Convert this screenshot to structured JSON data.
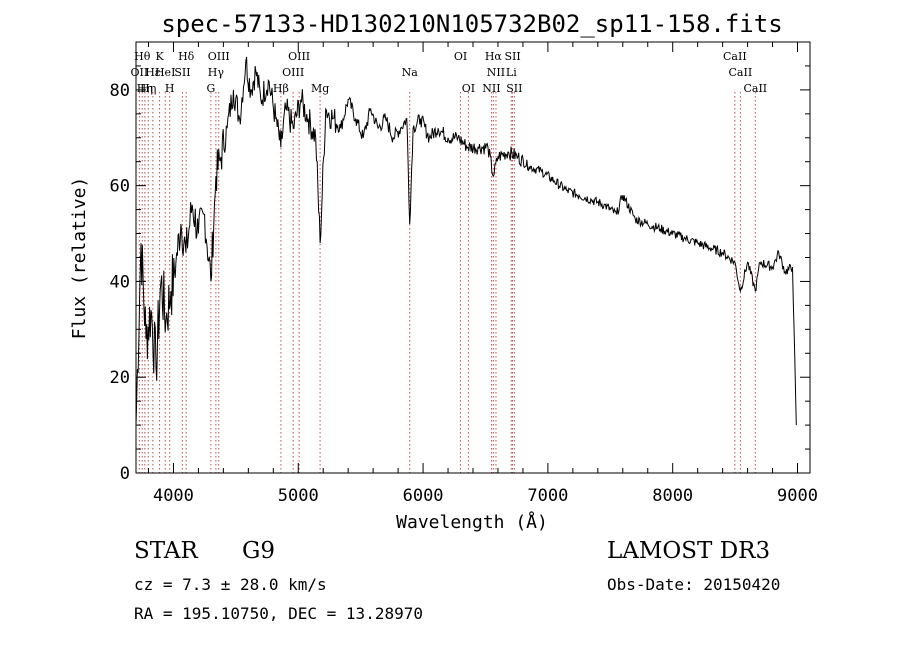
{
  "chart_data": {
    "type": "line",
    "title": "spec-57133-HD130210N105732B02_sp11-158.fits",
    "xlabel": "Wavelength (Å)",
    "ylabel": "Flux (relative)",
    "xlim": [
      3700,
      9100
    ],
    "ylim": [
      0,
      90
    ],
    "xticks": [
      4000,
      5000,
      6000,
      7000,
      8000,
      9000
    ],
    "yticks": [
      0,
      20,
      40,
      60,
      80
    ],
    "series": [
      {
        "name": "flux",
        "x": [
          3700,
          3740,
          3780,
          3820,
          3860,
          3900,
          3940,
          3980,
          4020,
          4060,
          4100,
          4150,
          4200,
          4250,
          4300,
          4340,
          4380,
          4430,
          4480,
          4530,
          4580,
          4620,
          4660,
          4700,
          4760,
          4820,
          4860,
          4900,
          4960,
          5020,
          5080,
          5140,
          5175,
          5220,
          5280,
          5340,
          5400,
          5460,
          5520,
          5580,
          5640,
          5700,
          5760,
          5820,
          5870,
          5893,
          5920,
          5980,
          6050,
          6120,
          6200,
          6280,
          6360,
          6440,
          6520,
          6563,
          6600,
          6680,
          6760,
          6850,
          6950,
          7050,
          7150,
          7250,
          7350,
          7450,
          7550,
          7600,
          7700,
          7800,
          7900,
          8000,
          8100,
          8200,
          8300,
          8400,
          8498,
          8542,
          8600,
          8662,
          8700,
          8800,
          8850,
          8900,
          8960,
          8990
        ],
        "y": [
          10,
          48,
          28,
          34,
          22,
          40,
          32,
          38,
          44,
          52,
          46,
          56,
          50,
          54,
          40,
          62,
          66,
          72,
          80,
          74,
          86,
          80,
          84,
          78,
          82,
          74,
          68,
          76,
          72,
          78,
          74,
          70,
          48,
          76,
          74,
          72,
          78,
          74,
          70,
          76,
          72,
          74,
          70,
          72,
          74,
          52,
          72,
          74,
          70,
          72,
          70,
          70,
          68,
          68,
          68,
          62,
          66,
          67,
          66,
          64,
          63,
          61,
          59,
          58,
          57,
          56,
          54,
          58,
          53,
          52,
          51,
          50,
          49,
          48,
          47,
          46,
          44,
          38,
          44,
          38,
          44,
          43,
          46,
          42,
          43,
          10
        ]
      }
    ],
    "lines": [
      {
        "wl": 3727,
        "row": 1,
        "label": "OII"
      },
      {
        "wl": 3750,
        "row": 0,
        "label": "Hθ"
      },
      {
        "wl": 3771,
        "row": 2,
        "label": "Hη"
      },
      {
        "wl": 3798,
        "row": 2,
        "label": "Hη"
      },
      {
        "wl": 3835,
        "row": 1,
        "label": "Hε"
      },
      {
        "wl": 3889,
        "row": 0,
        "label": "K"
      },
      {
        "wl": 3934,
        "row": 1,
        "label": "HeI"
      },
      {
        "wl": 3970,
        "row": 2,
        "label": "H"
      },
      {
        "wl": 4072,
        "row": 1,
        "label": "SII"
      },
      {
        "wl": 4102,
        "row": 0,
        "label": "Hδ"
      },
      {
        "wl": 4300,
        "row": 2,
        "label": "G"
      },
      {
        "wl": 4340,
        "row": 1,
        "label": "Hγ"
      },
      {
        "wl": 4363,
        "row": 0,
        "label": "OIII"
      },
      {
        "wl": 4861,
        "row": 2,
        "label": "Hβ"
      },
      {
        "wl": 4959,
        "row": 1,
        "label": "OIII"
      },
      {
        "wl": 5007,
        "row": 0,
        "label": "OIII"
      },
      {
        "wl": 5175,
        "row": 2,
        "label": "Mg"
      },
      {
        "wl": 5893,
        "row": 1,
        "label": "Na"
      },
      {
        "wl": 6300,
        "row": 0,
        "label": "OI"
      },
      {
        "wl": 6363,
        "row": 2,
        "label": "OI"
      },
      {
        "wl": 6548,
        "row": 2,
        "label": "NII"
      },
      {
        "wl": 6563,
        "row": 0,
        "label": "Hα"
      },
      {
        "wl": 6584,
        "row": 1,
        "label": "NII"
      },
      {
        "wl": 6707,
        "row": 1,
        "label": "Li"
      },
      {
        "wl": 6717,
        "row": 0,
        "label": "SII"
      },
      {
        "wl": 6731,
        "row": 2,
        "label": "SII"
      },
      {
        "wl": 8498,
        "row": 0,
        "label": "CaII"
      },
      {
        "wl": 8542,
        "row": 1,
        "label": "CaII"
      },
      {
        "wl": 8662,
        "row": 2,
        "label": "CaII"
      }
    ]
  },
  "info": {
    "class": "STAR",
    "subclass": "G9",
    "survey": "LAMOST DR3",
    "cz": "cz = 7.3 ± 28.0 km/s",
    "obsdate": "Obs-Date: 20150420",
    "radec": "RA = 195.10750, DEC =  13.28970"
  },
  "colors": {
    "line_marker": "#c0504d",
    "spectrum": "#000000"
  }
}
